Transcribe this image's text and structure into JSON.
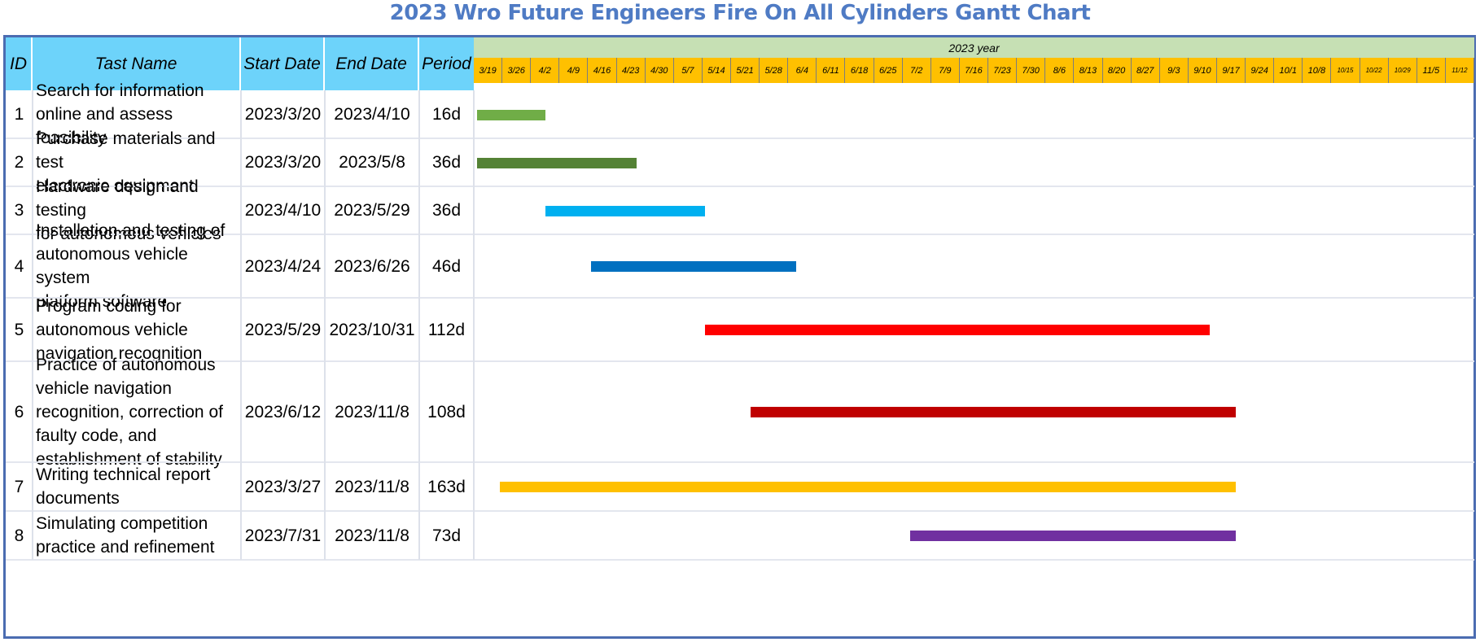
{
  "title": "2023 Wro Future Engineers Fire On All Cylinders Gantt Chart",
  "colors": {
    "header_bg": "#6dd3fa",
    "year_band": "#c6e0b4",
    "week_band": "#ffc000",
    "frame": "#4b6cb1",
    "title": "#4f7bc4"
  },
  "headers": {
    "id": "ID",
    "task": "Tast Name",
    "start": "Start Date",
    "end": "End Date",
    "period": "Period"
  },
  "chart_data": {
    "type": "gantt",
    "timeline_label": "2023 year",
    "timeline_start": "2023-03-19",
    "weeks": [
      "3/19",
      "3/26",
      "4/2",
      "4/9",
      "4/16",
      "4/23",
      "4/30",
      "5/7",
      "5/14",
      "5/21",
      "5/28",
      "6/4",
      "6/11",
      "6/18",
      "6/25",
      "7/2",
      "7/9",
      "7/16",
      "7/23",
      "7/30",
      "8/6",
      "8/13",
      "8/20",
      "8/27",
      "9/3",
      "9/10",
      "9/17",
      "9/24",
      "10/1",
      "10/8",
      "10/15",
      "10/22",
      "10/29",
      "11/5",
      "11/12"
    ],
    "tasks": [
      {
        "id": "1",
        "name": "Search for information\nonline and assess feasibility",
        "start_label": "2023/3/20",
        "end_label": "2023/4/10",
        "period": "16d",
        "start": "2023-03-20",
        "end": "2023-04-10",
        "color": "#70ad47"
      },
      {
        "id": "2",
        "name": "Purchase materials and test\nelectronic equipment",
        "start_label": "2023/3/20",
        "end_label": "2023/5/8",
        "period": "36d",
        "start": "2023-03-20",
        "end": "2023-05-08",
        "color": "#548235"
      },
      {
        "id": "3",
        "name": "Hardware design and testing\nfor autonomous vehicles",
        "start_label": "2023/4/10",
        "end_label": "2023/5/29",
        "period": "36d",
        "start": "2023-04-10",
        "end": "2023-05-29",
        "color": "#00b0f0"
      },
      {
        "id": "4",
        "name": "Installation and testing of\nautonomous vehicle system\n platform software",
        "start_label": "2023/4/24",
        "end_label": "2023/6/26",
        "period": "46d",
        "start": "2023-04-24",
        "end": "2023-06-26",
        "color": "#0070c0"
      },
      {
        "id": "5",
        "name": "Program coding for\nautonomous vehicle\nnavigation recognition",
        "start_label": "2023/5/29",
        "end_label": "2023/10/31",
        "period": "112d",
        "start": "2023-05-29",
        "end": "2023-10-31",
        "color": "#ff0000"
      },
      {
        "id": "6",
        "name": "Practice of autonomous\nvehicle navigation\nrecognition, correction of\nfaulty code, and\nestablishment of stability",
        "start_label": "2023/6/12",
        "end_label": "2023/11/8",
        "period": "108d",
        "start": "2023-06-12",
        "end": "2023-11-08",
        "color": "#c00000"
      },
      {
        "id": "7",
        "name": "Writing technical report\ndocuments",
        "start_label": "2023/3/27",
        "end_label": "2023/11/8",
        "period": "163d",
        "start": "2023-03-27",
        "end": "2023-11-08",
        "color": "#ffc000"
      },
      {
        "id": "8",
        "name": "Simulating competition\npractice and refinement",
        "start_label": "2023/7/31",
        "end_label": "2023/11/8",
        "period": "73d",
        "start": "2023-07-31",
        "end": "2023-11-08",
        "color": "#7030a0"
      }
    ]
  }
}
